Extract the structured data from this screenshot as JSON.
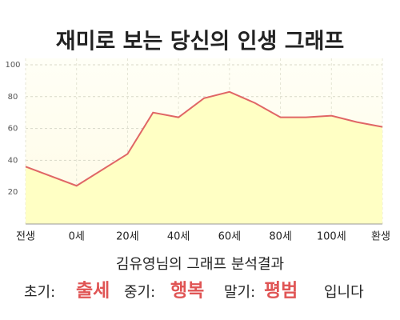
{
  "chart_data": {
    "type": "line",
    "title": "재미로 보는 당신의 인생 그래프",
    "x": [
      -20,
      0,
      20,
      30,
      40,
      50,
      60,
      70,
      80,
      90,
      100,
      110,
      120
    ],
    "series": [
      {
        "color": "#e06666",
        "fill": "#ffffc4",
        "values": [
          36,
          24,
          44,
          70,
          67,
          79,
          83,
          76,
          67,
          67,
          68,
          64,
          61
        ]
      }
    ],
    "xlim": [
      -20,
      120
    ],
    "xticks": [
      {
        "value": -20,
        "label": "전생"
      },
      {
        "value": 0,
        "label": "0세"
      },
      {
        "value": 20,
        "label": "20세"
      },
      {
        "value": 40,
        "label": "40세"
      },
      {
        "value": 60,
        "label": "60세"
      },
      {
        "value": 80,
        "label": "80세"
      },
      {
        "value": 100,
        "label": "100세"
      },
      {
        "value": 120,
        "label": "환생"
      }
    ],
    "ylim": [
      0,
      100
    ],
    "yticks": [
      20,
      40,
      60,
      80,
      100
    ],
    "grid": true
  },
  "result": {
    "heading": "김유영님의 그래프 분석결과",
    "items": [
      {
        "label": "초기:",
        "value": "출세"
      },
      {
        "label": "중기:",
        "value": "행복"
      },
      {
        "label": "말기:",
        "value": "평범"
      }
    ],
    "suffix": "입니다"
  }
}
